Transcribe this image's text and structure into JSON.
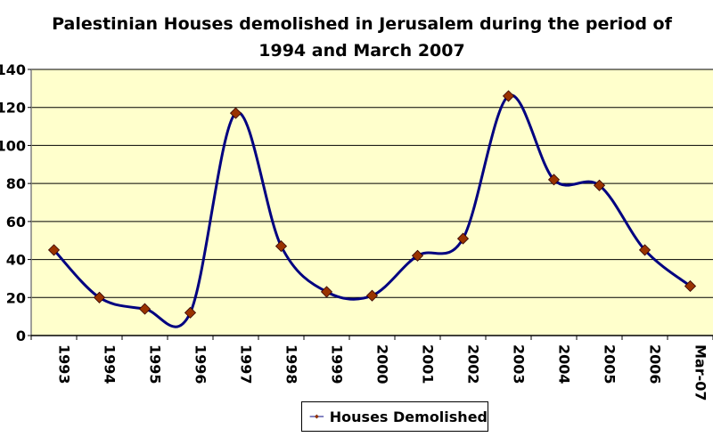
{
  "chart_data": {
    "type": "line",
    "title_lines": [
      "Palestinian Houses demolished in Jerusalem during the period of",
      "1994 and March 2007"
    ],
    "categories": [
      "1993",
      "1994",
      "1995",
      "1996",
      "1997",
      "1998",
      "1999",
      "2000",
      "2001",
      "2002",
      "2003",
      "2004",
      "2005",
      "2006",
      "Mar-07"
    ],
    "series": [
      {
        "name": "Houses Demolished",
        "values": [
          45,
          20,
          14,
          12,
          117,
          47,
          23,
          21,
          42,
          51,
          126,
          82,
          79,
          45,
          26
        ]
      }
    ],
    "y_ticks": [
      "0",
      "20",
      "40",
      "60",
      "80",
      "100",
      "120",
      "140"
    ],
    "ylim": [
      0,
      140
    ],
    "grid": true,
    "legend_position": "bottom",
    "smooth": true,
    "colors": {
      "plot_background": "#ffffcc",
      "line": "#000080",
      "marker": "#993300",
      "grid": "#000000"
    }
  }
}
